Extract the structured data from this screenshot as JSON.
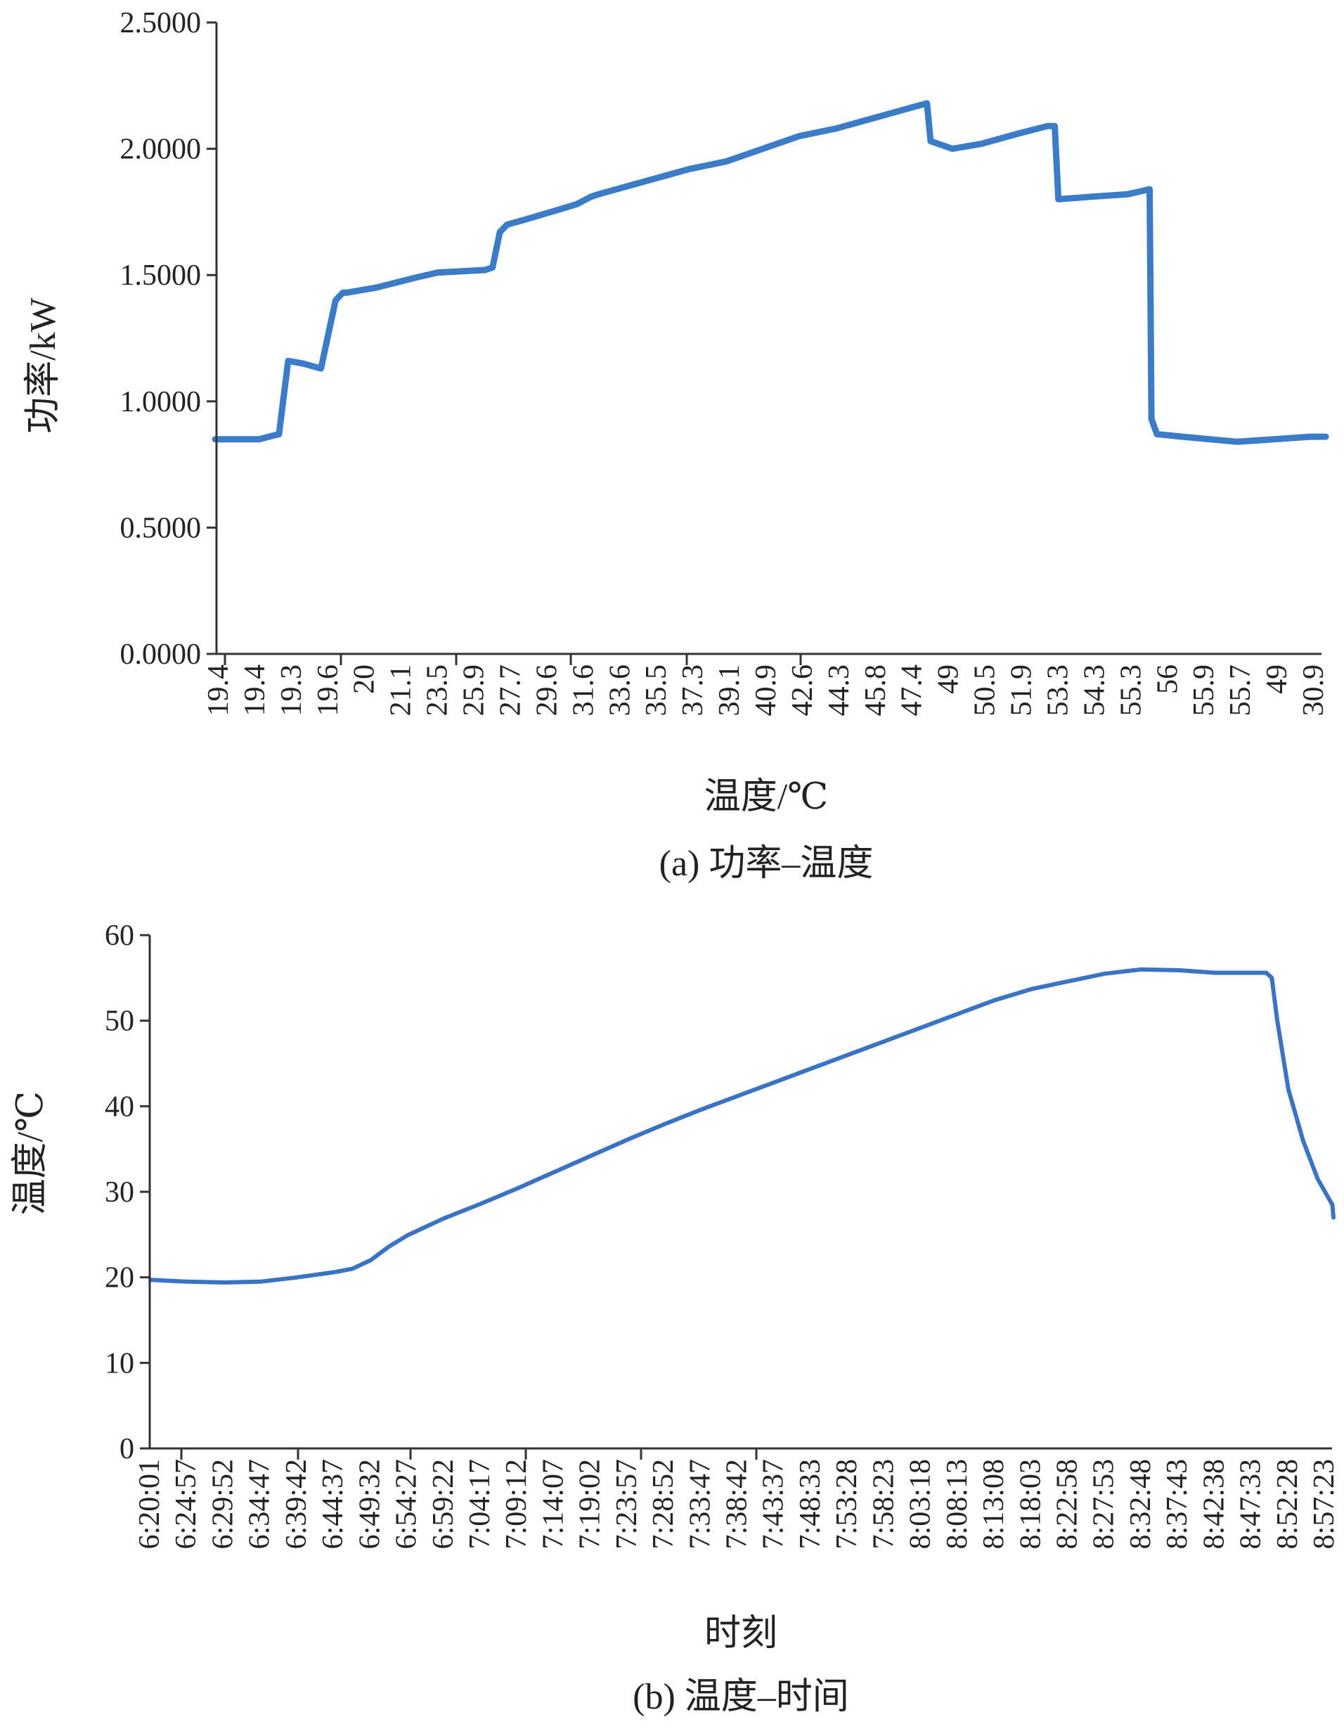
{
  "chart_data": [
    {
      "type": "line",
      "caption": "(a) 功率–温度",
      "xlabel": "温度/℃",
      "ylabel": "功率/kW",
      "ylim": [
        0,
        2.5
      ],
      "yticks": [
        "0.0000",
        "0.5000",
        "1.0000",
        "1.5000",
        "2.0000",
        "2.5000"
      ],
      "categories": [
        "19.4",
        "19.4",
        "19.3",
        "19.6",
        "20",
        "21.1",
        "23.5",
        "25.9",
        "27.7",
        "29.6",
        "31.6",
        "33.6",
        "35.5",
        "37.3",
        "39.1",
        "40.9",
        "42.6",
        "44.3",
        "45.8",
        "47.4",
        "49",
        "50.5",
        "51.9",
        "53.3",
        "54.3",
        "55.3",
        "56",
        "55.9",
        "55.7",
        "49",
        "30.9"
      ],
      "series": [
        {
          "color": "#3a7cc8",
          "x": [
            0,
            1.2,
            1.75,
            2.0,
            2.4,
            2.9,
            3.3,
            3.5,
            3.6,
            4.4,
            5.5,
            6.1,
            7.4,
            7.6,
            7.8,
            8.0,
            8.5,
            9.2,
            9.9,
            10.3,
            10.5,
            11.0,
            12.0,
            13.0,
            14.0,
            15.0,
            16.0,
            17.0,
            18.0,
            19.0,
            19.5,
            19.6,
            20.2,
            21.0,
            22.0,
            22.8,
            23.0,
            23.1,
            24.0,
            25.0,
            25.6,
            25.65,
            25.8,
            26.5,
            28.0,
            29.0,
            30.0,
            31.0
          ],
          "y": [
            0.85,
            0.85,
            0.87,
            1.16,
            1.15,
            1.13,
            1.4,
            1.43,
            1.43,
            1.45,
            1.49,
            1.51,
            1.52,
            1.53,
            1.67,
            1.7,
            1.72,
            1.75,
            1.78,
            1.81,
            1.82,
            1.84,
            1.88,
            1.92,
            1.95,
            2.0,
            2.05,
            2.08,
            2.12,
            2.16,
            2.18,
            2.03,
            2.0,
            2.02,
            2.06,
            2.09,
            2.09,
            1.8,
            1.81,
            1.82,
            1.84,
            0.93,
            0.87,
            0.86,
            0.84,
            0.85,
            0.86,
            0.86
          ]
        }
      ]
    },
    {
      "type": "line",
      "caption": "(b) 温度–时间",
      "xlabel": "时刻",
      "ylabel": "温度/℃",
      "ylim": [
        0,
        60
      ],
      "yticks": [
        "0",
        "10",
        "20",
        "30",
        "40",
        "50",
        "60"
      ],
      "categories": [
        "6:20:01",
        "6:24:57",
        "6:29:52",
        "6:34:47",
        "6:39:42",
        "6:44:37",
        "6:49:32",
        "6:54:27",
        "6:59:22",
        "7:04:17",
        "7:09:12",
        "7:14:07",
        "7:19:02",
        "7:23:57",
        "7:28:52",
        "7:33:47",
        "7:38:42",
        "7:43:37",
        "7:48:33",
        "7:53:28",
        "7:58:23",
        "8:03:18",
        "8:08:13",
        "8:13:08",
        "8:18:03",
        "8:22:58",
        "8:27:53",
        "8:32:48",
        "8:37:43",
        "8:42:38",
        "8:47:33",
        "8:52:28",
        "8:57:23"
      ],
      "series": [
        {
          "color": "#3a72c4",
          "x": [
            0,
            1,
            2,
            3,
            4,
            5,
            5.5,
            6,
            6.5,
            7,
            8,
            9,
            10,
            11,
            12,
            13,
            14,
            15,
            16,
            17,
            18,
            19,
            20,
            21,
            22,
            23,
            24,
            25,
            26,
            27,
            28,
            29,
            30,
            30.4,
            30.55,
            30.7,
            31,
            31.4,
            31.8,
            32.2,
            32.5
          ],
          "y": [
            19.7,
            19.5,
            19.4,
            19.5,
            20.0,
            20.6,
            21.0,
            22.0,
            23.6,
            24.9,
            26.9,
            28.6,
            30.4,
            32.3,
            34.2,
            36.1,
            37.9,
            39.6,
            41.2,
            42.8,
            44.4,
            46.0,
            47.6,
            49.2,
            50.8,
            52.4,
            53.7,
            54.6,
            55.5,
            56.0,
            55.9,
            55.6,
            55.6,
            55.6,
            55.0,
            50.0,
            42.0,
            36.0,
            31.5,
            28.5,
            27.0
          ]
        }
      ]
    }
  ]
}
